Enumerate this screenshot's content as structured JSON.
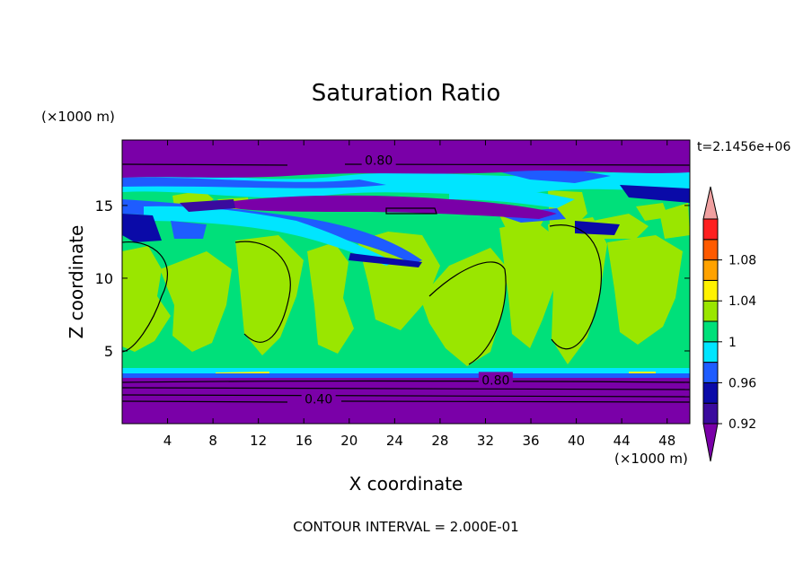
{
  "chart_data": {
    "type": "heatmap",
    "title": "Saturation Ratio",
    "time_label": "t=2.1456e+06",
    "x_axis": {
      "label": "X coordinate",
      "unit": "(×1000 m)",
      "range": [
        0,
        50
      ],
      "ticks": [
        4,
        8,
        12,
        16,
        20,
        24,
        28,
        32,
        36,
        40,
        44,
        48
      ]
    },
    "y_axis": {
      "label": "Z coordinate",
      "unit": "(×1000 m)",
      "range": [
        0,
        19.5
      ],
      "ticks": [
        5,
        10,
        15
      ]
    },
    "colorbar": {
      "levels": [
        0.92,
        0.94,
        0.96,
        0.98,
        1.0,
        1.02,
        1.04,
        1.06,
        1.08,
        1.1
      ],
      "tick_labels": [
        "0.92",
        "0.96",
        "1",
        "1.04",
        "1.08"
      ],
      "colors": [
        "#7a00a8",
        "#3a0b9e",
        "#0a0aa8",
        "#1e5cff",
        "#00e5ff",
        "#00e07a",
        "#9ae600",
        "#fff200",
        "#ffa200",
        "#ff5a00",
        "#ff2020",
        "#f0a0a0"
      ],
      "extend": "both"
    },
    "contour_labels": [
      {
        "text": "0.80",
        "x": 22.6,
        "z": 18.1
      },
      {
        "text": "0.80",
        "x": 32.9,
        "z": 3.0
      },
      {
        "text": "0.40",
        "x": 17.3,
        "z": 1.7
      }
    ],
    "contour_interval": "CONTOUR INTERVAL = 2.000E-01"
  }
}
